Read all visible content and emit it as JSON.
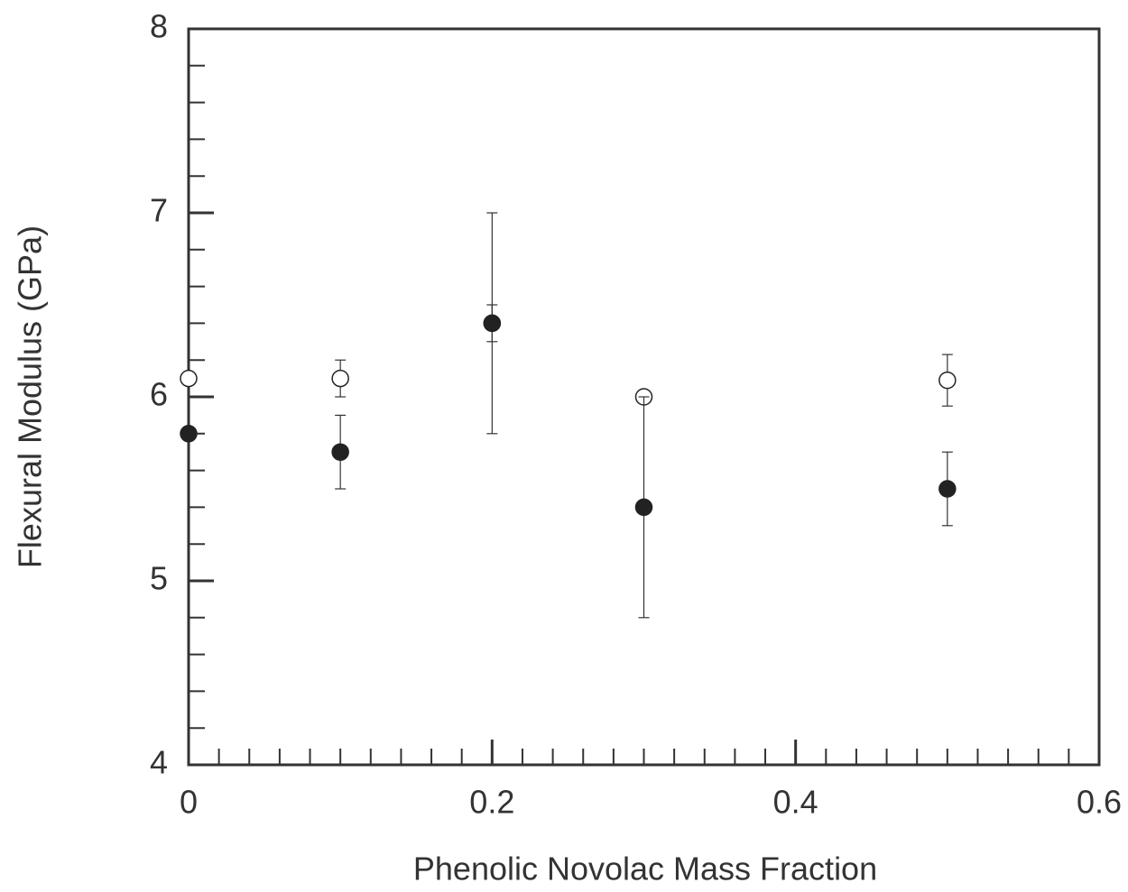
{
  "chart_data": {
    "type": "scatter",
    "xlabel": "Phenolic Novolac Mass Fraction",
    "ylabel": "Flexural Modulus (GPa)",
    "xlim": [
      0,
      0.6
    ],
    "xticks": [
      0,
      0.2,
      0.4,
      0.6
    ],
    "ylim": [
      4,
      8
    ],
    "yticks": [
      4,
      5,
      6,
      7,
      8
    ],
    "series": [
      {
        "marker": "open",
        "color": "#222222",
        "x": [
          0,
          0.1,
          0.2,
          0.3,
          0.5
        ],
        "values": [
          6.1,
          6.1,
          6.4,
          6.0,
          6.09
        ],
        "errors": [
          null,
          0.1,
          0.1,
          null,
          0.14
        ]
      },
      {
        "marker": "filled",
        "color": "#222222",
        "x": [
          0,
          0.1,
          0.2,
          0.3,
          0.5
        ],
        "values": [
          5.8,
          5.7,
          6.4,
          5.4,
          5.5
        ],
        "errors": [
          null,
          0.2,
          0.6,
          0.6,
          0.2
        ]
      }
    ]
  }
}
